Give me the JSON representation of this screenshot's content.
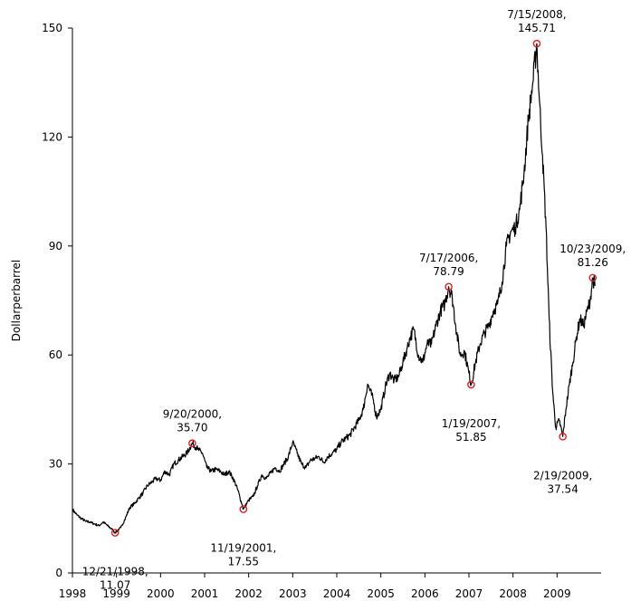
{
  "chart_data": {
    "type": "line",
    "title": "",
    "xlabel": "",
    "ylabel": "Dollarperbarrel",
    "xlim": [
      1998,
      2010
    ],
    "ylim": [
      0,
      150
    ],
    "x_ticks": [
      "1998",
      "1999",
      "2000",
      "2001",
      "2002",
      "2003",
      "2004",
      "2005",
      "2006",
      "2007",
      "2008",
      "2009"
    ],
    "y_ticks": [
      "0",
      "30",
      "60",
      "90",
      "120",
      "150"
    ],
    "grid": false,
    "series": [
      {
        "x": [
          1998.0,
          1998.1,
          1998.2,
          1998.3,
          1998.4,
          1998.5,
          1998.6,
          1998.7,
          1998.8,
          1998.9,
          1998.97,
          1999.1,
          1999.2,
          1999.3,
          1999.4,
          1999.5,
          1999.6,
          1999.7,
          1999.8,
          1999.9,
          2000.0,
          2000.1,
          2000.2,
          2000.3,
          2000.4,
          2000.5,
          2000.6,
          2000.72,
          2000.85,
          2000.95,
          2001.05,
          2001.15,
          2001.25,
          2001.35,
          2001.45,
          2001.55,
          2001.65,
          2001.75,
          2001.88,
          2002.0,
          2002.1,
          2002.2,
          2002.3,
          2002.4,
          2002.5,
          2002.6,
          2002.7,
          2002.8,
          2002.9,
          2003.0,
          2003.1,
          2003.2,
          2003.3,
          2003.4,
          2003.5,
          2003.6,
          2003.7,
          2003.8,
          2003.9,
          2004.0,
          2004.1,
          2004.2,
          2004.3,
          2004.4,
          2004.5,
          2004.6,
          2004.7,
          2004.82,
          2004.9,
          2005.0,
          2005.1,
          2005.2,
          2005.3,
          2005.4,
          2005.5,
          2005.6,
          2005.67,
          2005.75,
          2005.85,
          2005.95,
          2006.05,
          2006.15,
          2006.25,
          2006.35,
          2006.45,
          2006.54,
          2006.62,
          2006.7,
          2006.8,
          2006.9,
          2007.0,
          2007.05,
          2007.15,
          2007.25,
          2007.35,
          2007.45,
          2007.55,
          2007.65,
          2007.75,
          2007.85,
          2007.95,
          2008.05,
          2008.15,
          2008.25,
          2008.35,
          2008.45,
          2008.54,
          2008.6,
          2008.67,
          2008.75,
          2008.82,
          2008.9,
          2008.97,
          2009.05,
          2009.13,
          2009.2,
          2009.28,
          2009.36,
          2009.44,
          2009.52,
          2009.6,
          2009.68,
          2009.75,
          2009.81,
          2009.86
        ],
        "y": [
          17.5,
          16.0,
          15.0,
          14.2,
          14.0,
          13.5,
          13.0,
          14.0,
          13.0,
          12.0,
          11.07,
          12.5,
          15.0,
          18.0,
          19.0,
          20.5,
          22.0,
          24.0,
          25.0,
          26.0,
          25.5,
          28.0,
          27.0,
          30.0,
          31.0,
          32.0,
          33.0,
          35.7,
          34.0,
          33.0,
          29.0,
          28.0,
          28.5,
          28.0,
          27.0,
          28.0,
          26.0,
          23.0,
          17.55,
          20.0,
          21.0,
          24.0,
          27.0,
          26.0,
          27.5,
          29.0,
          28.0,
          30.0,
          32.0,
          36.0,
          33.0,
          30.0,
          29.0,
          31.0,
          31.5,
          32.0,
          30.5,
          32.0,
          33.0,
          34.0,
          36.0,
          37.0,
          38.0,
          40.0,
          42.0,
          45.0,
          52.0,
          48.0,
          43.0,
          45.0,
          51.0,
          55.0,
          53.0,
          54.0,
          58.0,
          62.0,
          65.0,
          67.0,
          60.0,
          58.0,
          63.0,
          63.0,
          68.0,
          72.0,
          74.0,
          78.79,
          76.0,
          68.0,
          60.0,
          61.0,
          55.0,
          51.85,
          58.0,
          63.0,
          66.0,
          68.0,
          72.0,
          74.0,
          80.0,
          90.0,
          94.0,
          95.0,
          100.0,
          110.0,
          125.0,
          135.0,
          145.71,
          130.0,
          115.0,
          95.0,
          70.0,
          50.0,
          40.0,
          42.0,
          37.54,
          45.0,
          52.0,
          58.0,
          65.0,
          70.0,
          68.0,
          72.0,
          75.0,
          81.26,
          79.0
        ]
      }
    ],
    "annotations": [
      {
        "x": 1998.97,
        "y": 11.07,
        "line1": "12/21/1998,",
        "line2": "11.07",
        "pos": "below"
      },
      {
        "x": 2000.72,
        "y": 35.7,
        "line1": "9/20/2000,",
        "line2": "35.70",
        "pos": "above"
      },
      {
        "x": 2001.88,
        "y": 17.55,
        "line1": "11/19/2001,",
        "line2": "17.55",
        "pos": "below"
      },
      {
        "x": 2006.54,
        "y": 78.79,
        "line1": "7/17/2006,",
        "line2": "78.79",
        "pos": "above"
      },
      {
        "x": 2007.05,
        "y": 51.85,
        "line1": "1/19/2007,",
        "line2": "51.85",
        "pos": "below"
      },
      {
        "x": 2008.54,
        "y": 145.71,
        "line1": "7/15/2008,",
        "line2": "145.71",
        "pos": "above"
      },
      {
        "x": 2009.13,
        "y": 37.54,
        "line1": "2/19/2009,",
        "line2": "37.54",
        "pos": "below"
      },
      {
        "x": 2009.81,
        "y": 81.26,
        "line1": "10/23/2009,",
        "line2": "81.26",
        "pos": "above"
      }
    ],
    "colors": {
      "line": "#000000",
      "marker": "#e02020",
      "axis": "#000000"
    }
  }
}
